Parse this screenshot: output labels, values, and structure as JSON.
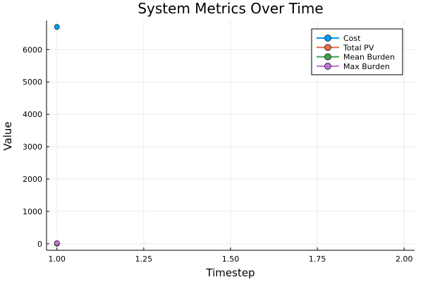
{
  "chart_data": {
    "type": "line",
    "title": "System Metrics Over Time",
    "xlabel": "Timestep",
    "ylabel": "Value",
    "xlim": [
      0.97,
      2.03
    ],
    "ylim": [
      -200,
      6900
    ],
    "xticks": [
      1.0,
      1.25,
      1.5,
      1.75,
      2.0
    ],
    "xtick_labels": [
      "1.00",
      "1.25",
      "1.50",
      "1.75",
      "2.00"
    ],
    "yticks": [
      0,
      1000,
      2000,
      3000,
      4000,
      5000,
      6000
    ],
    "ytick_labels": [
      "0",
      "1000",
      "2000",
      "3000",
      "4000",
      "5000",
      "6000"
    ],
    "grid": true,
    "legend_position": "top-right",
    "series": [
      {
        "name": "Cost",
        "color": "#009AFA",
        "x": [
          1.0
        ],
        "y": [
          6700
        ]
      },
      {
        "name": "Total PV",
        "color": "#E36F47",
        "x": [
          1.0
        ],
        "y": [
          10
        ]
      },
      {
        "name": "Mean Burden",
        "color": "#3EA44E",
        "x": [
          1.0
        ],
        "y": [
          5
        ]
      },
      {
        "name": "Max Burden",
        "color": "#C271D2",
        "x": [
          1.0
        ],
        "y": [
          20
        ]
      }
    ]
  }
}
